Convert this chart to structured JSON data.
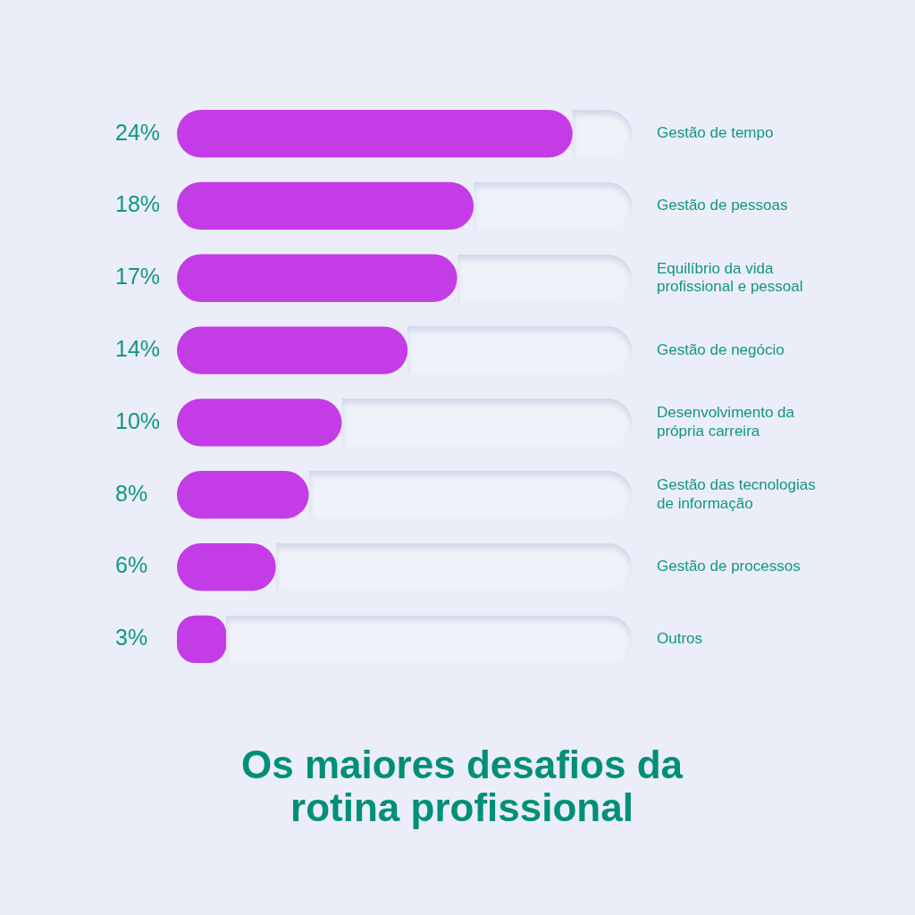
{
  "chart_data": {
    "type": "bar",
    "orientation": "horizontal",
    "title": "Os maiores desafios da rotina profissional",
    "categories": [
      "Gestão de tempo",
      "Gestão de pessoas",
      "Equilíbrio da vida profissional e pessoal",
      "Gestão de negócio",
      "Desenvolvimento da própria carreira",
      "Gestão das tecnologias de informação",
      "Gestão de processos",
      "Outros"
    ],
    "values": [
      24,
      18,
      17,
      14,
      10,
      8,
      6,
      3
    ],
    "value_labels": [
      "24%",
      "18%",
      "17%",
      "14%",
      "10%",
      "8%",
      "6%",
      "3%"
    ],
    "color": "#c43ce6",
    "tick_labels": "y"
  }
}
